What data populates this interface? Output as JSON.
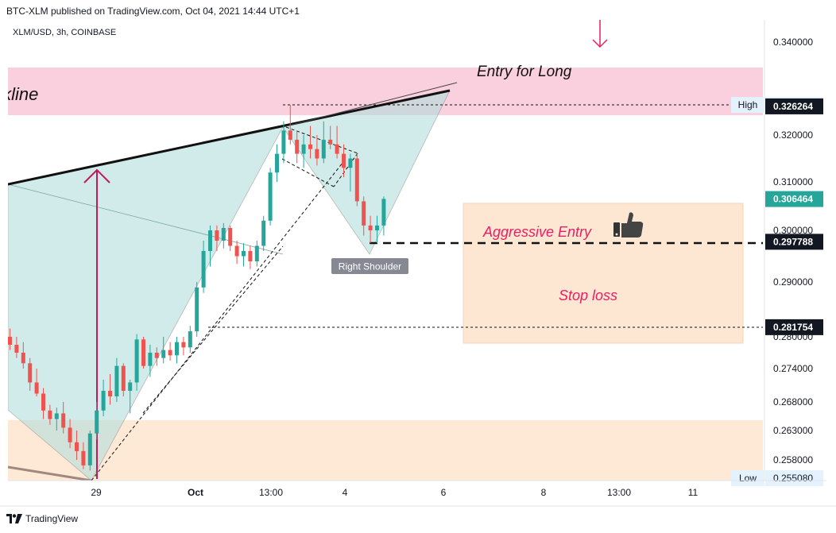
{
  "header": {
    "published": "BTC-XLM published on TradingView.com, Oct 04, 2021 14:44 UTC+1",
    "symbol": "XLM/USD, 3h, COINBASE"
  },
  "footer": {
    "brand": "TradingView"
  },
  "colors": {
    "bull": "#26a69a",
    "bear": "#ef5350",
    "pink_zone": "#f8bbd0",
    "orange_zone": "#fde0c4",
    "teal_fill": "#b2dfdb",
    "arrow": "#c2185b"
  },
  "chart_data": {
    "type": "candlestick",
    "title": "XLM/USD, 3h, COINBASE",
    "x_ticks": [
      "29",
      "Oct",
      "13:00",
      "4",
      "6",
      "8",
      "13:00",
      "11"
    ],
    "y_ticks": [
      "0.340000",
      "0.320000",
      "0.310000",
      "0.300000",
      "0.290000",
      "0.280000",
      "0.274000",
      "0.268000",
      "0.263000",
      "0.258000"
    ],
    "price_labels": [
      {
        "name": "high",
        "prefix": "High",
        "value": "0.326573"
      },
      {
        "name": "line",
        "prefix": "",
        "value": "0.326264"
      },
      {
        "name": "last",
        "prefix": "",
        "value": "0.306464"
      },
      {
        "name": "entry",
        "prefix": "",
        "value": "0.297788"
      },
      {
        "name": "stop",
        "prefix": "",
        "value": "0.281754"
      },
      {
        "name": "low",
        "prefix": "Low",
        "value": "0.255080"
      }
    ],
    "annotations": {
      "neckline": "Neckline",
      "entry_long": "Entry for Long",
      "aggressive": "Aggressive Entry",
      "stop_loss": "Stop loss",
      "right_shoulder": "Right Shoulder"
    },
    "candles": [
      {
        "o": 0.28,
        "h": 0.2815,
        "l": 0.2775,
        "c": 0.2785
      },
      {
        "o": 0.2785,
        "h": 0.28,
        "l": 0.276,
        "c": 0.277
      },
      {
        "o": 0.277,
        "h": 0.279,
        "l": 0.274,
        "c": 0.275
      },
      {
        "o": 0.275,
        "h": 0.276,
        "l": 0.27,
        "c": 0.2715
      },
      {
        "o": 0.2715,
        "h": 0.274,
        "l": 0.269,
        "c": 0.2695
      },
      {
        "o": 0.2695,
        "h": 0.2705,
        "l": 0.265,
        "c": 0.2665
      },
      {
        "o": 0.2665,
        "h": 0.2675,
        "l": 0.264,
        "c": 0.265
      },
      {
        "o": 0.265,
        "h": 0.267,
        "l": 0.263,
        "c": 0.266
      },
      {
        "o": 0.266,
        "h": 0.268,
        "l": 0.2625,
        "c": 0.2635
      },
      {
        "o": 0.2635,
        "h": 0.265,
        "l": 0.26,
        "c": 0.261
      },
      {
        "o": 0.261,
        "h": 0.263,
        "l": 0.258,
        "c": 0.2595
      },
      {
        "o": 0.2595,
        "h": 0.261,
        "l": 0.2555,
        "c": 0.2565
      },
      {
        "o": 0.2565,
        "h": 0.263,
        "l": 0.2551,
        "c": 0.2625
      },
      {
        "o": 0.2625,
        "h": 0.268,
        "l": 0.2615,
        "c": 0.2665
      },
      {
        "o": 0.2665,
        "h": 0.272,
        "l": 0.2655,
        "c": 0.27
      },
      {
        "o": 0.27,
        "h": 0.273,
        "l": 0.2675,
        "c": 0.269
      },
      {
        "o": 0.269,
        "h": 0.276,
        "l": 0.268,
        "c": 0.2745
      },
      {
        "o": 0.2745,
        "h": 0.275,
        "l": 0.269,
        "c": 0.27
      },
      {
        "o": 0.27,
        "h": 0.272,
        "l": 0.266,
        "c": 0.2715
      },
      {
        "o": 0.2715,
        "h": 0.2805,
        "l": 0.27,
        "c": 0.2795
      },
      {
        "o": 0.2795,
        "h": 0.28,
        "l": 0.274,
        "c": 0.2745
      },
      {
        "o": 0.2745,
        "h": 0.2785,
        "l": 0.2725,
        "c": 0.277
      },
      {
        "o": 0.277,
        "h": 0.278,
        "l": 0.2745,
        "c": 0.276
      },
      {
        "o": 0.276,
        "h": 0.28,
        "l": 0.275,
        "c": 0.2775
      },
      {
        "o": 0.2775,
        "h": 0.279,
        "l": 0.2755,
        "c": 0.2765
      },
      {
        "o": 0.2765,
        "h": 0.28,
        "l": 0.275,
        "c": 0.279
      },
      {
        "o": 0.279,
        "h": 0.28,
        "l": 0.2765,
        "c": 0.278
      },
      {
        "o": 0.278,
        "h": 0.282,
        "l": 0.277,
        "c": 0.281
      },
      {
        "o": 0.281,
        "h": 0.29,
        "l": 0.28,
        "c": 0.289
      },
      {
        "o": 0.289,
        "h": 0.298,
        "l": 0.288,
        "c": 0.296
      },
      {
        "o": 0.296,
        "h": 0.301,
        "l": 0.293,
        "c": 0.3
      },
      {
        "o": 0.3,
        "h": 0.301,
        "l": 0.296,
        "c": 0.298
      },
      {
        "o": 0.298,
        "h": 0.3015,
        "l": 0.2965,
        "c": 0.3005
      },
      {
        "o": 0.3005,
        "h": 0.301,
        "l": 0.296,
        "c": 0.297
      },
      {
        "o": 0.297,
        "h": 0.298,
        "l": 0.2935,
        "c": 0.295
      },
      {
        "o": 0.295,
        "h": 0.2975,
        "l": 0.293,
        "c": 0.296
      },
      {
        "o": 0.296,
        "h": 0.297,
        "l": 0.2925,
        "c": 0.294
      },
      {
        "o": 0.294,
        "h": 0.298,
        "l": 0.293,
        "c": 0.297
      },
      {
        "o": 0.297,
        "h": 0.303,
        "l": 0.296,
        "c": 0.302
      },
      {
        "o": 0.302,
        "h": 0.313,
        "l": 0.301,
        "c": 0.312
      },
      {
        "o": 0.312,
        "h": 0.318,
        "l": 0.31,
        "c": 0.316
      },
      {
        "o": 0.316,
        "h": 0.323,
        "l": 0.314,
        "c": 0.321
      },
      {
        "o": 0.321,
        "h": 0.3266,
        "l": 0.318,
        "c": 0.319
      },
      {
        "o": 0.319,
        "h": 0.321,
        "l": 0.314,
        "c": 0.316
      },
      {
        "o": 0.316,
        "h": 0.32,
        "l": 0.313,
        "c": 0.318
      },
      {
        "o": 0.318,
        "h": 0.322,
        "l": 0.315,
        "c": 0.317
      },
      {
        "o": 0.317,
        "h": 0.32,
        "l": 0.3135,
        "c": 0.315
      },
      {
        "o": 0.315,
        "h": 0.323,
        "l": 0.314,
        "c": 0.319
      },
      {
        "o": 0.319,
        "h": 0.322,
        "l": 0.317,
        "c": 0.318
      },
      {
        "o": 0.318,
        "h": 0.322,
        "l": 0.315,
        "c": 0.316
      },
      {
        "o": 0.316,
        "h": 0.318,
        "l": 0.311,
        "c": 0.313
      },
      {
        "o": 0.313,
        "h": 0.316,
        "l": 0.308,
        "c": 0.315
      },
      {
        "o": 0.315,
        "h": 0.316,
        "l": 0.305,
        "c": 0.306
      },
      {
        "o": 0.306,
        "h": 0.307,
        "l": 0.299,
        "c": 0.301
      },
      {
        "o": 0.301,
        "h": 0.303,
        "l": 0.2975,
        "c": 0.3
      },
      {
        "o": 0.3,
        "h": 0.303,
        "l": 0.2975,
        "c": 0.301
      },
      {
        "o": 0.301,
        "h": 0.307,
        "l": 0.299,
        "c": 0.3065
      }
    ]
  }
}
